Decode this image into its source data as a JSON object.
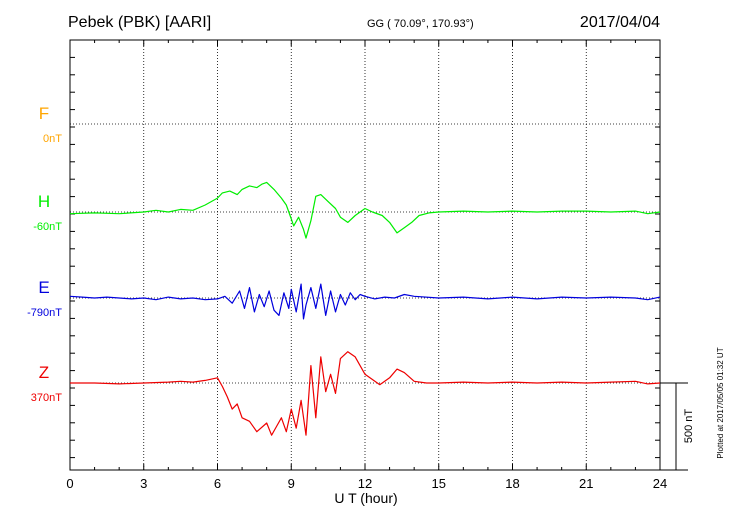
{
  "header": {
    "station": "Pebek (PBK)  [AARI]",
    "coords": "GG ( 70.09°, 170.93°)",
    "date": "2017/04/04"
  },
  "side_note": "Plotted at 2017/05/05 01:32 UT",
  "scale_bar_label": "500 nT",
  "chart_data": {
    "type": "line",
    "title": "Pebek (PBK)  [AARI]",
    "xlabel": "U T (hour)",
    "xlim": [
      0,
      24
    ],
    "x_ticks": [
      0,
      3,
      6,
      9,
      12,
      15,
      18,
      21,
      24
    ],
    "units": "nT",
    "scale_bar_nT": 500,
    "grid": true,
    "series": [
      {
        "name": "F",
        "baseline_label": "0nT",
        "color": "#ffa500",
        "x": [],
        "y": []
      },
      {
        "name": "H",
        "baseline_label": "-60nT",
        "color": "#00ee00",
        "x": [
          0,
          1,
          2,
          3,
          3.5,
          4,
          4.5,
          5,
          5.5,
          6,
          6.2,
          6.5,
          6.8,
          7,
          7.3,
          7.6,
          7.8,
          8,
          8.3,
          8.6,
          8.8,
          9,
          9.1,
          9.3,
          9.5,
          9.6,
          9.8,
          10,
          10.2,
          10.5,
          10.8,
          11,
          11.3,
          11.6,
          12,
          12.3,
          12.7,
          13,
          13.3,
          13.6,
          13.9,
          14.2,
          14.6,
          15,
          16,
          17,
          18,
          19,
          20,
          21,
          22,
          23,
          23.5,
          24
        ],
        "y": [
          -10,
          -5,
          -10,
          0,
          10,
          0,
          15,
          10,
          40,
          80,
          110,
          120,
          100,
          130,
          150,
          140,
          160,
          170,
          130,
          80,
          40,
          -40,
          -80,
          -30,
          -100,
          -150,
          -50,
          90,
          100,
          60,
          20,
          -30,
          -60,
          -20,
          20,
          0,
          -20,
          -60,
          -120,
          -90,
          -60,
          -20,
          -5,
          0,
          5,
          0,
          5,
          0,
          5,
          5,
          0,
          5,
          -10,
          0
        ]
      },
      {
        "name": "E",
        "baseline_label": "-790nT",
        "color": "#0000dd",
        "x": [
          0,
          0.5,
          1,
          1.5,
          2,
          2.5,
          3,
          3.5,
          4,
          4.5,
          5,
          5.5,
          6,
          6.3,
          6.6,
          6.9,
          7.1,
          7.3,
          7.5,
          7.7,
          7.9,
          8.1,
          8.3,
          8.5,
          8.7,
          8.9,
          9,
          9.2,
          9.4,
          9.5,
          9.6,
          9.8,
          10,
          10.2,
          10.4,
          10.6,
          10.8,
          11,
          11.2,
          11.4,
          11.6,
          11.8,
          12,
          12.4,
          12.8,
          13.2,
          13.6,
          14,
          15,
          16,
          17,
          18,
          19,
          20,
          21,
          22,
          23,
          23.5,
          24
        ],
        "y": [
          10,
          5,
          0,
          5,
          0,
          -5,
          0,
          -10,
          5,
          -5,
          0,
          -10,
          -5,
          10,
          -30,
          40,
          -60,
          60,
          -80,
          20,
          -50,
          40,
          -70,
          -100,
          30,
          -60,
          50,
          -80,
          80,
          -120,
          -40,
          60,
          -60,
          80,
          -100,
          40,
          -80,
          20,
          -40,
          30,
          -10,
          20,
          10,
          -5,
          5,
          0,
          20,
          10,
          0,
          5,
          -5,
          5,
          -5,
          5,
          0,
          5,
          0,
          -10,
          5
        ]
      },
      {
        "name": "Z",
        "baseline_label": "370nT",
        "color": "#ee0000",
        "x": [
          0,
          1,
          2,
          3,
          4,
          4.5,
          5,
          5.5,
          6,
          6.2,
          6.4,
          6.6,
          6.8,
          7,
          7.3,
          7.6,
          8,
          8.2,
          8.4,
          8.6,
          8.8,
          9,
          9.2,
          9.4,
          9.6,
          9.8,
          10,
          10.2,
          10.4,
          10.6,
          10.8,
          11,
          11.3,
          11.6,
          12,
          12.3,
          12.6,
          13,
          13.3,
          13.6,
          14,
          14.5,
          15,
          16,
          17,
          18,
          19,
          20,
          21,
          22,
          23,
          23.5,
          24
        ],
        "y": [
          0,
          0,
          -5,
          0,
          5,
          10,
          5,
          15,
          30,
          -20,
          -80,
          -150,
          -120,
          -200,
          -220,
          -280,
          -230,
          -300,
          -250,
          -200,
          -280,
          -150,
          -260,
          -100,
          -300,
          100,
          -200,
          150,
          -50,
          50,
          -60,
          140,
          180,
          150,
          50,
          20,
          -10,
          30,
          80,
          60,
          10,
          0,
          0,
          5,
          0,
          5,
          0,
          5,
          0,
          5,
          10,
          -5,
          0
        ]
      }
    ]
  }
}
